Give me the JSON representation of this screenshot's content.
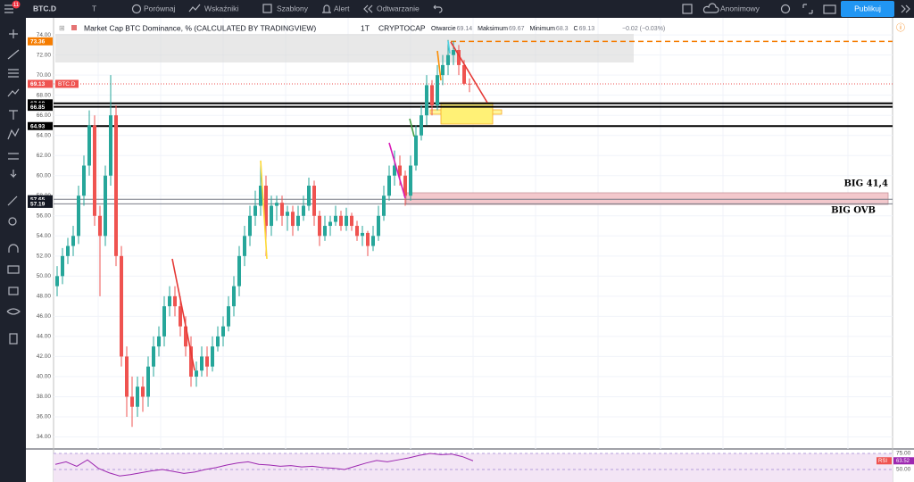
{
  "toolbar": {
    "badge": "11",
    "symbol": "BTC.D",
    "interval": "T",
    "compare": "Porównaj",
    "indicators": "Wskaźniki",
    "templates": "Szablony",
    "alert": "Alert",
    "replay": "Odtwarzanie",
    "user": "Anonimowy",
    "publish": "Publikuj"
  },
  "chart_data": {
    "type": "candlestick",
    "title": "Market Cap BTC Dominance, % (CALCULATED BY TRADINGVIEW)",
    "interval": "1T",
    "exchange": "CRYPTOCAP",
    "legend_labels": [
      "Otwarcie",
      "Maksimum",
      "Minimum",
      "C"
    ],
    "change": "−0.02 (−0.03%)",
    "symbol_tag": "BTC.D",
    "up_color": "#26a69a",
    "down_color": "#ef5350",
    "ylim": [
      32.8,
      74.1
    ],
    "yticks": [
      {
        "value": 34,
        "label": "34.00"
      },
      {
        "value": 36,
        "label": "36.00"
      },
      {
        "value": 38,
        "label": "38.00"
      },
      {
        "value": 40,
        "label": "40.00"
      },
      {
        "value": 42,
        "label": "42.00"
      },
      {
        "value": 44,
        "label": "44.00"
      },
      {
        "value": 46,
        "label": "46.00"
      },
      {
        "value": 48,
        "label": "48.00"
      },
      {
        "value": 50,
        "label": "50.00"
      },
      {
        "value": 52,
        "label": "52.00"
      },
      {
        "value": 54,
        "label": "54.00"
      },
      {
        "value": 56,
        "label": "56.00"
      },
      {
        "value": 58,
        "label": "58.00"
      },
      {
        "value": 60,
        "label": "60.00"
      },
      {
        "value": 62,
        "label": "62.00"
      },
      {
        "value": 64,
        "label": "64.00"
      },
      {
        "value": 66,
        "label": "66.00"
      },
      {
        "value": 68,
        "label": "68.00"
      },
      {
        "value": 70,
        "label": "70.00"
      },
      {
        "value": 72,
        "label": "72.00"
      },
      {
        "value": 74,
        "label": "74.00"
      }
    ],
    "levels": [
      {
        "value": 73.36,
        "color": "#f57c00",
        "style": "dashed"
      },
      {
        "value": 69.13,
        "color": "#ef5350",
        "style": "dotted"
      },
      {
        "value": 67.19,
        "color": "#000000",
        "style": "solid"
      },
      {
        "value": 66.85,
        "color": "#000000",
        "style": "solid"
      },
      {
        "value": 64.93,
        "color": "#000000",
        "style": "solid"
      },
      {
        "value": 57.65,
        "color": "#787b86",
        "style": "solid"
      },
      {
        "value": 57.19,
        "color": "#787b86",
        "style": "solid"
      }
    ],
    "annotations": [
      "BIG 41,4",
      "BIG OVB"
    ],
    "candles": [
      [
        49,
        51,
        48,
        50
      ],
      [
        50,
        52.8,
        49.2,
        52
      ],
      [
        52,
        53.8,
        51.2,
        53
      ],
      [
        53,
        55,
        52,
        54
      ],
      [
        54,
        59,
        53.2,
        58
      ],
      [
        58,
        62,
        57,
        61
      ],
      [
        61,
        66.5,
        60,
        65
      ],
      [
        65,
        66,
        55,
        56
      ],
      [
        56,
        57,
        48,
        54
      ],
      [
        54,
        61,
        53,
        60
      ],
      [
        60,
        70,
        59,
        66
      ],
      [
        66,
        67,
        51,
        52
      ],
      [
        52,
        53,
        41,
        42
      ],
      [
        42,
        43,
        36,
        38
      ],
      [
        38,
        40,
        35,
        37
      ],
      [
        37,
        40,
        36,
        39
      ],
      [
        39,
        40,
        36.5,
        38
      ],
      [
        38,
        42,
        37,
        41
      ],
      [
        41,
        44,
        40,
        43
      ],
      [
        43,
        45,
        42,
        44
      ],
      [
        44,
        48,
        43,
        47
      ],
      [
        47,
        49,
        46,
        48
      ],
      [
        48,
        49,
        46,
        47
      ],
      [
        47,
        48,
        44,
        45
      ],
      [
        45,
        46,
        42,
        43
      ],
      [
        43,
        44,
        39,
        40
      ],
      [
        40,
        41.5,
        39,
        40.6
      ],
      [
        40.6,
        43,
        40,
        42
      ],
      [
        42,
        43,
        40,
        41
      ],
      [
        41,
        44,
        40.5,
        43
      ],
      [
        43,
        45,
        42.5,
        44
      ],
      [
        44,
        46,
        43,
        45
      ],
      [
        45,
        48,
        44.5,
        47
      ],
      [
        47,
        50,
        46,
        49
      ],
      [
        49,
        53,
        48,
        52
      ],
      [
        52,
        55,
        51,
        54
      ],
      [
        54,
        57,
        53,
        56
      ],
      [
        56,
        58.5,
        55,
        57
      ],
      [
        57,
        61.5,
        56,
        59
      ],
      [
        59,
        60,
        52,
        55
      ],
      [
        55,
        58,
        54,
        57
      ],
      [
        57,
        58,
        55.5,
        57.3
      ],
      [
        57.3,
        58,
        55,
        56
      ],
      [
        56,
        57,
        54.5,
        56.4
      ],
      [
        56.4,
        57,
        54,
        55
      ],
      [
        55,
        57,
        54.5,
        56
      ],
      [
        56,
        58,
        55.5,
        57
      ],
      [
        57,
        59.8,
        56.5,
        59
      ],
      [
        59,
        59.5,
        55,
        56
      ],
      [
        56,
        56.5,
        53,
        54
      ],
      [
        54,
        56,
        53.5,
        55
      ],
      [
        55,
        56,
        54,
        55.4
      ],
      [
        55.4,
        57,
        55,
        56
      ],
      [
        56,
        56.5,
        54.5,
        55
      ],
      [
        55,
        56.8,
        54.5,
        56
      ],
      [
        56,
        56.3,
        54.5,
        55
      ],
      [
        55,
        55.5,
        53.5,
        54
      ],
      [
        54,
        55,
        53,
        54.3
      ],
      [
        54.3,
        54.5,
        52,
        53
      ],
      [
        53,
        55,
        52.5,
        54
      ],
      [
        54,
        57,
        53.5,
        56
      ],
      [
        56,
        59,
        55.5,
        58
      ],
      [
        58,
        61,
        57.5,
        60
      ],
      [
        60,
        62.5,
        59,
        61
      ],
      [
        61,
        62,
        59,
        60
      ],
      [
        60,
        60.5,
        57,
        58
      ],
      [
        58,
        62,
        57.5,
        61
      ],
      [
        61,
        65,
        60.5,
        64
      ],
      [
        64,
        67,
        63.5,
        66
      ],
      [
        66,
        70,
        65,
        69
      ],
      [
        69,
        69.5,
        66,
        67
      ],
      [
        67,
        71,
        66.5,
        70
      ],
      [
        70,
        72,
        69,
        71
      ],
      [
        71,
        73.5,
        70,
        72
      ],
      [
        72,
        73.4,
        71,
        72.5
      ],
      [
        72.5,
        73,
        70,
        71
      ],
      [
        71,
        71.5,
        69,
        69.14
      ],
      [
        69.14,
        69.67,
        68.3,
        69.13
      ]
    ],
    "rsi": {
      "name": "RSI",
      "color": "#9c27b0",
      "ylim": [
        30.6,
        81.9
      ],
      "yticks": [
        {
          "value": 75,
          "label": "75.00"
        },
        {
          "value": 50,
          "label": "50.00"
        }
      ],
      "values": [
        58,
        62,
        55,
        65,
        52,
        45,
        40,
        42,
        45,
        48,
        50,
        47,
        44,
        46,
        50,
        53,
        57,
        60,
        62,
        58,
        57,
        55,
        56,
        54,
        55,
        53,
        52,
        50,
        55,
        60,
        64,
        62,
        65,
        68,
        72,
        75,
        73,
        74,
        70,
        63.52
      ]
    }
  }
}
